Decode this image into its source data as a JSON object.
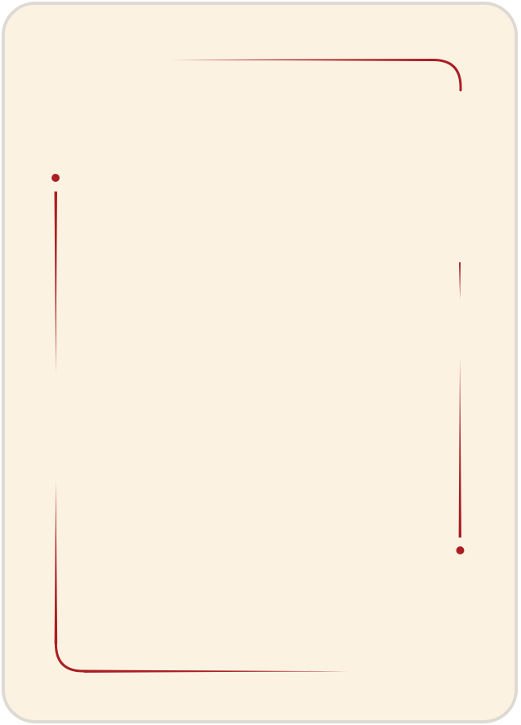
{
  "card": {
    "background_color": "#fcf2e2",
    "border_color": "#dedad3",
    "ornament_color": "#aa1e24"
  }
}
